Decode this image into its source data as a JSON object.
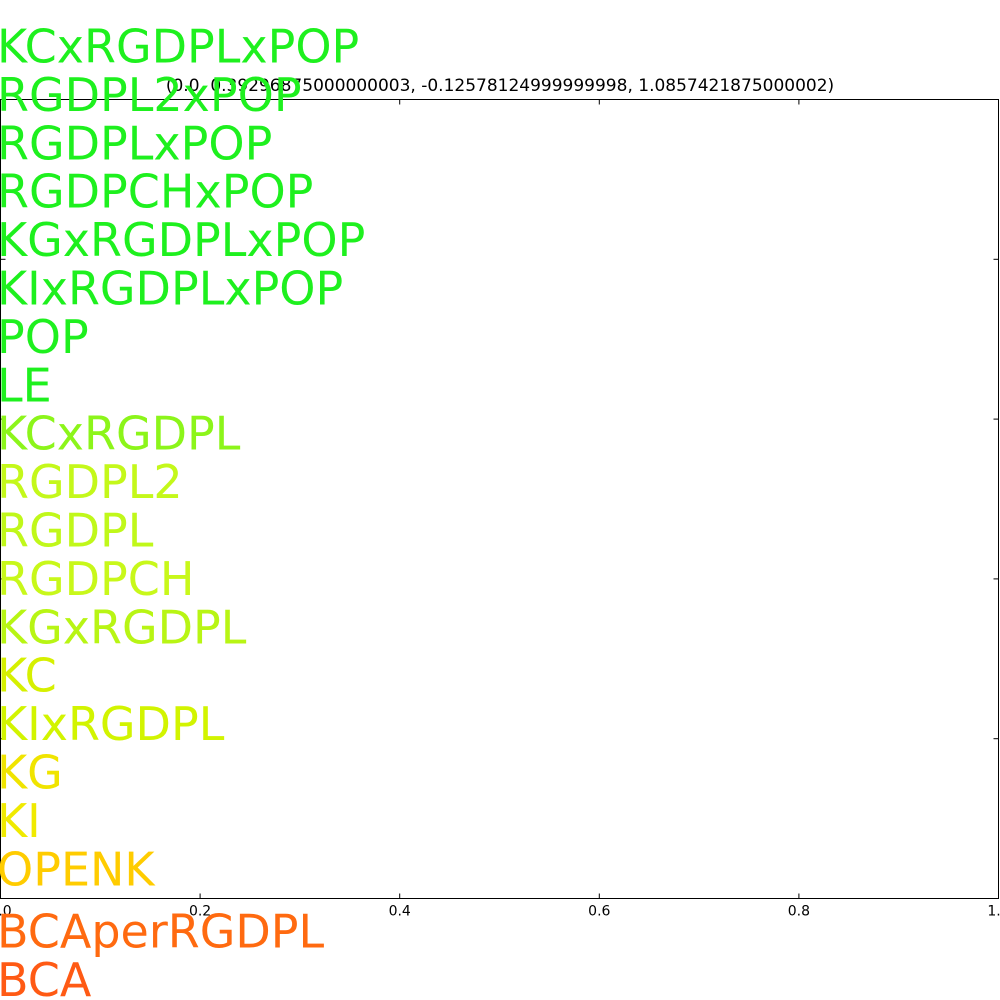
{
  "chart_data": {
    "type": "text",
    "title": "(0.0, 0.39296875000000003, -0.12578124999999998, 1.0857421875000002)",
    "labels": [
      {
        "text": "KCxRGDPLxPOP",
        "color": "#1ef01e"
      },
      {
        "text": "RGDPL2xPOP",
        "color": "#1ef01e"
      },
      {
        "text": "RGDPLxPOP",
        "color": "#1ef01e"
      },
      {
        "text": "RGDPCHxPOP",
        "color": "#1ef01e"
      },
      {
        "text": "KGxRGDPLxPOP",
        "color": "#1ef01e"
      },
      {
        "text": "KIxRGDPLxPOP",
        "color": "#1ef01e"
      },
      {
        "text": "POP",
        "color": "#1ef01e"
      },
      {
        "text": "LE",
        "color": "#1ef01e"
      },
      {
        "text": "KCxRGDPL",
        "color": "#8cf51a"
      },
      {
        "text": "RGDPL2",
        "color": "#c4f81a"
      },
      {
        "text": "RGDPL",
        "color": "#c0f81a"
      },
      {
        "text": "RGDPCH",
        "color": "#c8f81a"
      },
      {
        "text": "KGxRGDPL",
        "color": "#b8f514"
      },
      {
        "text": "KC",
        "color": "#d6f000"
      },
      {
        "text": "KIxRGDPL",
        "color": "#d2f400"
      },
      {
        "text": "KG",
        "color": "#f0e400"
      },
      {
        "text": "KI",
        "color": "#f0ea00"
      },
      {
        "text": "OPENK",
        "color": "#ffcc00"
      },
      {
        "text": "BCAperRGDPL",
        "color": "#ff6a10"
      },
      {
        "text": "BCA",
        "color": "#ff5a14"
      }
    ],
    "xlim": [
      0,
      1
    ],
    "xticks": [
      {
        "value": 0,
        "label": "0.0"
      },
      0.2,
      0.4,
      0.6,
      0.8,
      {
        "value": 1,
        "label": "1.0"
      }
    ],
    "ylim": [
      0,
      1
    ],
    "yticks": [
      0.2,
      0.4,
      0.6,
      0.8
    ]
  }
}
